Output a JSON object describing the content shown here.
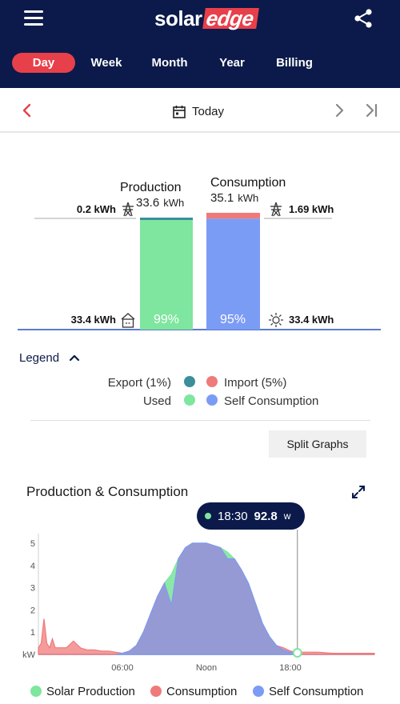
{
  "header": {
    "logo_solar": "solar",
    "logo_edge": "edge"
  },
  "tabs": [
    {
      "label": "Day",
      "active": true
    },
    {
      "label": "Week",
      "active": false
    },
    {
      "label": "Month",
      "active": false
    },
    {
      "label": "Year",
      "active": false
    },
    {
      "label": "Billing",
      "active": false
    }
  ],
  "date_nav": {
    "label": "Today"
  },
  "summary": {
    "production": {
      "title": "Production",
      "value": "33.6",
      "unit": "kWh",
      "used_percent": "99%"
    },
    "consumption": {
      "title": "Consumption",
      "value": "35.1",
      "unit": "kWh",
      "self_percent": "95%"
    },
    "export_value": "0.2 kWh",
    "import_value": "1.69 kWh",
    "used_value": "33.4 kWh",
    "self_value": "33.4 kWh",
    "production_used_fraction": 0.99,
    "consumption_self_fraction": 0.95
  },
  "legend": {
    "toggle_label": "Legend",
    "items": [
      {
        "label": "Export (1%)",
        "color": "#3b8f9a"
      },
      {
        "label": "Import (5%)",
        "color": "#f07a7a"
      },
      {
        "label": "Used",
        "color": "#7ee69e"
      },
      {
        "label": "Self Consumption",
        "color": "#7b9cf5"
      }
    ]
  },
  "split_button_label": "Split Graphs",
  "pc_chart_title": "Production & Consumption",
  "tooltip": {
    "time": "18:30",
    "value": "92.8",
    "unit": "w"
  },
  "chart_data": {
    "type": "area",
    "x_ticks": [
      "06:00",
      "Noon",
      "18:00"
    ],
    "y_ticks": [
      "5",
      "4",
      "3",
      "2",
      "1",
      "kW"
    ],
    "ylim": [
      0,
      5
    ],
    "xlim": [
      0,
      24
    ],
    "series": [
      {
        "name": "Solar Production",
        "color": "#7ee69e",
        "x": [
          5.5,
          6.0,
          6.5,
          7.0,
          7.5,
          8.0,
          8.5,
          9.0,
          9.5,
          10.0,
          10.5,
          11.0,
          11.5,
          12.0,
          12.5,
          13.0,
          13.5,
          14.0,
          14.5,
          15.0,
          15.5,
          16.0,
          16.5,
          17.0,
          17.5,
          18.0,
          18.5
        ],
        "values": [
          0,
          0.05,
          0.15,
          0.4,
          1.0,
          1.8,
          2.6,
          3.2,
          3.6,
          4.3,
          4.8,
          5.0,
          5.0,
          5.0,
          4.9,
          4.8,
          4.6,
          4.3,
          3.8,
          3.2,
          2.3,
          1.4,
          0.8,
          0.4,
          0.2,
          0.1,
          0.09
        ]
      },
      {
        "name": "Consumption",
        "color": "#f07a7a",
        "x": [
          0,
          0.2,
          0.4,
          0.6,
          0.8,
          1.0,
          1.2,
          1.5,
          2.0,
          2.5,
          3.0,
          3.2,
          3.5,
          4.0,
          4.5,
          5.0,
          5.5,
          6.0,
          6.5,
          7.0,
          7.5,
          8.0,
          8.5,
          9.0,
          9.5,
          10.0,
          10.5,
          11.0,
          11.5,
          12.0,
          12.5,
          13.0,
          13.5,
          14.0,
          14.5,
          15.0,
          15.5,
          16.0,
          16.5,
          17.0,
          17.5,
          18.0,
          18.5,
          19.0,
          20.0,
          21.0,
          22.0,
          23.0,
          24.0
        ],
        "values": [
          0.3,
          0.5,
          1.6,
          0.5,
          0.3,
          0.7,
          0.3,
          0.3,
          0.3,
          0.6,
          0.3,
          0.25,
          0.2,
          0.2,
          0.15,
          0.15,
          0.1,
          0.05,
          0.15,
          0.4,
          1.0,
          1.8,
          2.6,
          3.2,
          2.2,
          4.3,
          4.8,
          5.0,
          5.0,
          5.0,
          4.9,
          4.8,
          4.3,
          4.3,
          3.8,
          3.2,
          2.3,
          1.4,
          0.8,
          0.4,
          0.3,
          0.15,
          0.1,
          0.1,
          0.1,
          0.05,
          0.05,
          0.05,
          0.05
        ]
      },
      {
        "name": "Self Consumption",
        "color": "#7b9cf5",
        "x": [
          5.5,
          6.0,
          6.5,
          7.0,
          7.5,
          8.0,
          8.5,
          9.0,
          9.5,
          10.0,
          10.5,
          11.0,
          11.5,
          12.0,
          12.5,
          13.0,
          13.5,
          14.0,
          14.5,
          15.0,
          15.5,
          16.0,
          16.5,
          17.0,
          17.5,
          18.0,
          18.5
        ],
        "values": [
          0,
          0.05,
          0.15,
          0.4,
          1.0,
          1.8,
          2.6,
          3.2,
          2.2,
          4.3,
          4.8,
          5.0,
          5.0,
          5.0,
          4.9,
          4.8,
          4.3,
          4.3,
          3.8,
          3.2,
          2.3,
          1.4,
          0.8,
          0.4,
          0.2,
          0.1,
          0.09
        ]
      }
    ],
    "cursor_x": 18.5
  },
  "bottom_legend": [
    {
      "label": "Solar Production",
      "color": "#7ee69e"
    },
    {
      "label": "Consumption",
      "color": "#f07a7a"
    },
    {
      "label": "Self Consumption",
      "color": "#7b9cf5"
    }
  ]
}
